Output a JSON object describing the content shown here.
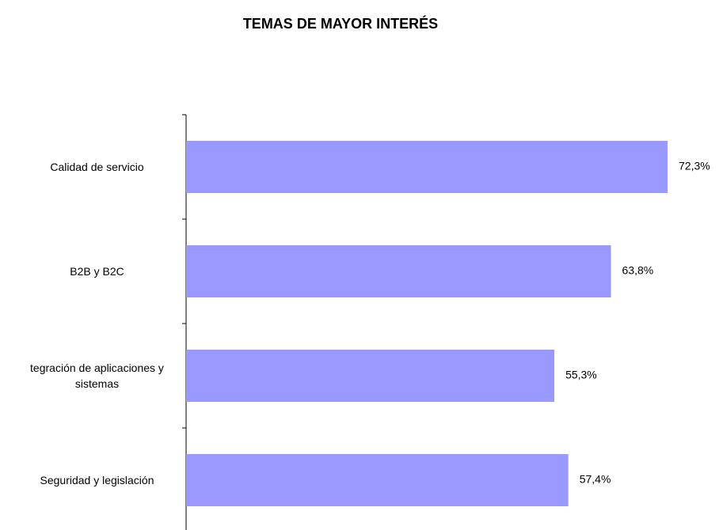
{
  "chart_data": {
    "type": "bar",
    "orientation": "horizontal",
    "title": "TEMAS DE MAYOR INTERÉS",
    "categories": [
      "Calidad de servicio",
      "B2B y B2C",
      "tegración de aplicaciones y sistemas",
      "Seguridad y legislación"
    ],
    "values": [
      72.3,
      63.8,
      55.3,
      57.4
    ],
    "value_labels": [
      "72,3%",
      "63,8%",
      "55,3%",
      "57,4%"
    ],
    "color": "#9999ff"
  }
}
